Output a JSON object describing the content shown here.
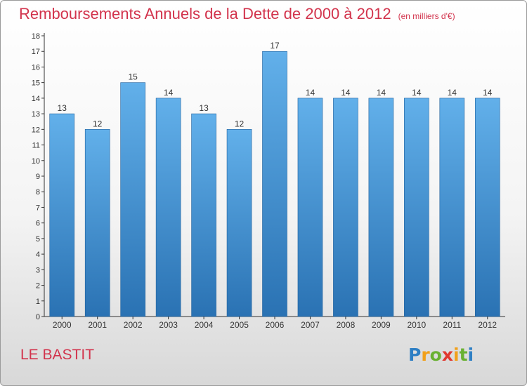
{
  "title": "Remboursements Annuels de la Dette de 2000 à 2012",
  "subtitle": "(en milliers d'€)",
  "town": "LE BASTIT",
  "logo": {
    "letters": [
      "P",
      "r",
      "o",
      "x",
      "i",
      "t",
      "i"
    ],
    "colors": [
      "#2e7fc4",
      "#f1a01a",
      "#69b132",
      "#e0392f",
      "#f1a01a",
      "#69b132",
      "#2e7fc4"
    ]
  },
  "colors": {
    "title": "#d2334c",
    "bar_top": "#62b0ea",
    "bar_bottom": "#2a72b3",
    "axis": "#333333"
  },
  "chart_data": {
    "type": "bar",
    "categories": [
      "2000",
      "2001",
      "2002",
      "2003",
      "2004",
      "2005",
      "2006",
      "2007",
      "2008",
      "2009",
      "2010",
      "2011",
      "2012"
    ],
    "values": [
      13,
      12,
      15,
      14,
      13,
      12,
      17,
      14,
      14,
      14,
      14,
      14,
      14
    ],
    "ylim": [
      0,
      18
    ],
    "yticks": [
      0,
      1,
      2,
      3,
      4,
      5,
      6,
      7,
      8,
      9,
      10,
      11,
      12,
      13,
      14,
      15,
      16,
      17,
      18
    ],
    "grid": false,
    "legend": "none",
    "data_labels": true
  }
}
